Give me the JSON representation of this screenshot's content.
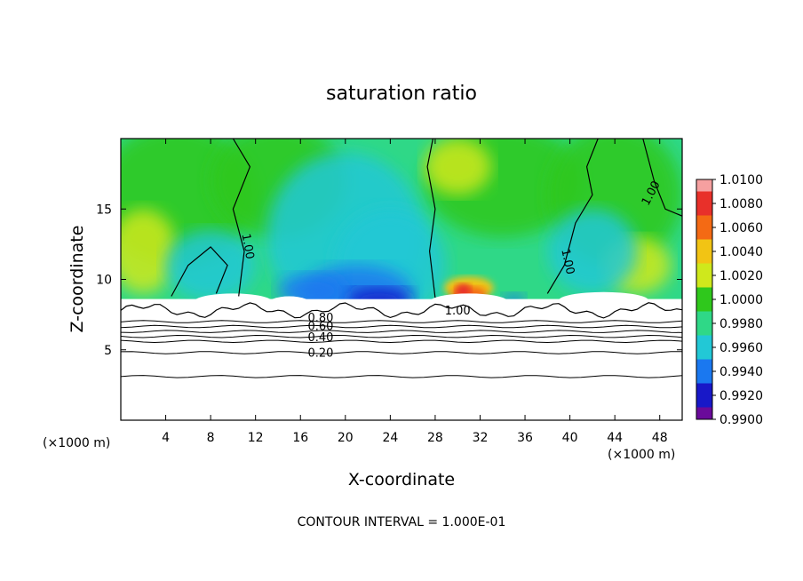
{
  "chart_data": {
    "type": "heatmap",
    "title": "saturation ratio",
    "xlabel": "X-coordinate",
    "ylabel": "Z-coordinate",
    "x_unit_label_left": "(×1000 m)",
    "x_unit_label_right": "(×1000 m)",
    "footer": "CONTOUR INTERVAL = 1.000E-01",
    "xlim": [
      0,
      50
    ],
    "ylim": [
      0,
      20
    ],
    "x_ticks": [
      4,
      8,
      12,
      16,
      20,
      24,
      28,
      32,
      36,
      40,
      44,
      48
    ],
    "y_ticks": [
      5,
      10,
      15
    ],
    "colorbar": {
      "levels": [
        "1.0100",
        "1.0080",
        "1.0060",
        "1.0040",
        "1.0020",
        "1.0000",
        "0.9980",
        "0.9960",
        "0.9940",
        "0.9920",
        "0.9900"
      ],
      "colors": [
        "#f6a0a0",
        "#e8302a",
        "#f46a14",
        "#f2c414",
        "#cfe81c",
        "#2fc81c",
        "#2fd887",
        "#22c8d6",
        "#1a78f0",
        "#1818c8",
        "#6a0a9a"
      ]
    },
    "contour_labels": [
      {
        "text": "1.00",
        "x": 11,
        "z": 12.3,
        "rotate": 80
      },
      {
        "text": "1.00",
        "x": 47.5,
        "z": 16,
        "rotate": -62
      },
      {
        "text": "1.00",
        "x": 39.5,
        "z": 11.2,
        "rotate": 78
      },
      {
        "text": "1.00",
        "x": 30,
        "z": 7.5,
        "rotate": 0
      },
      {
        "text": "0.80",
        "x": 17.8,
        "z": 7.0,
        "rotate": 0
      },
      {
        "text": "0.60",
        "x": 17.8,
        "z": 6.4,
        "rotate": 0
      },
      {
        "text": "0.40",
        "x": 17.8,
        "z": 5.6,
        "rotate": 0
      },
      {
        "text": "0.20",
        "x": 17.8,
        "z": 4.5,
        "rotate": 0
      }
    ],
    "lower_contours_z": [
      3.1,
      4.8,
      5.6,
      5.95,
      6.3,
      6.65,
      7.0
    ],
    "colorbar_title": ""
  }
}
